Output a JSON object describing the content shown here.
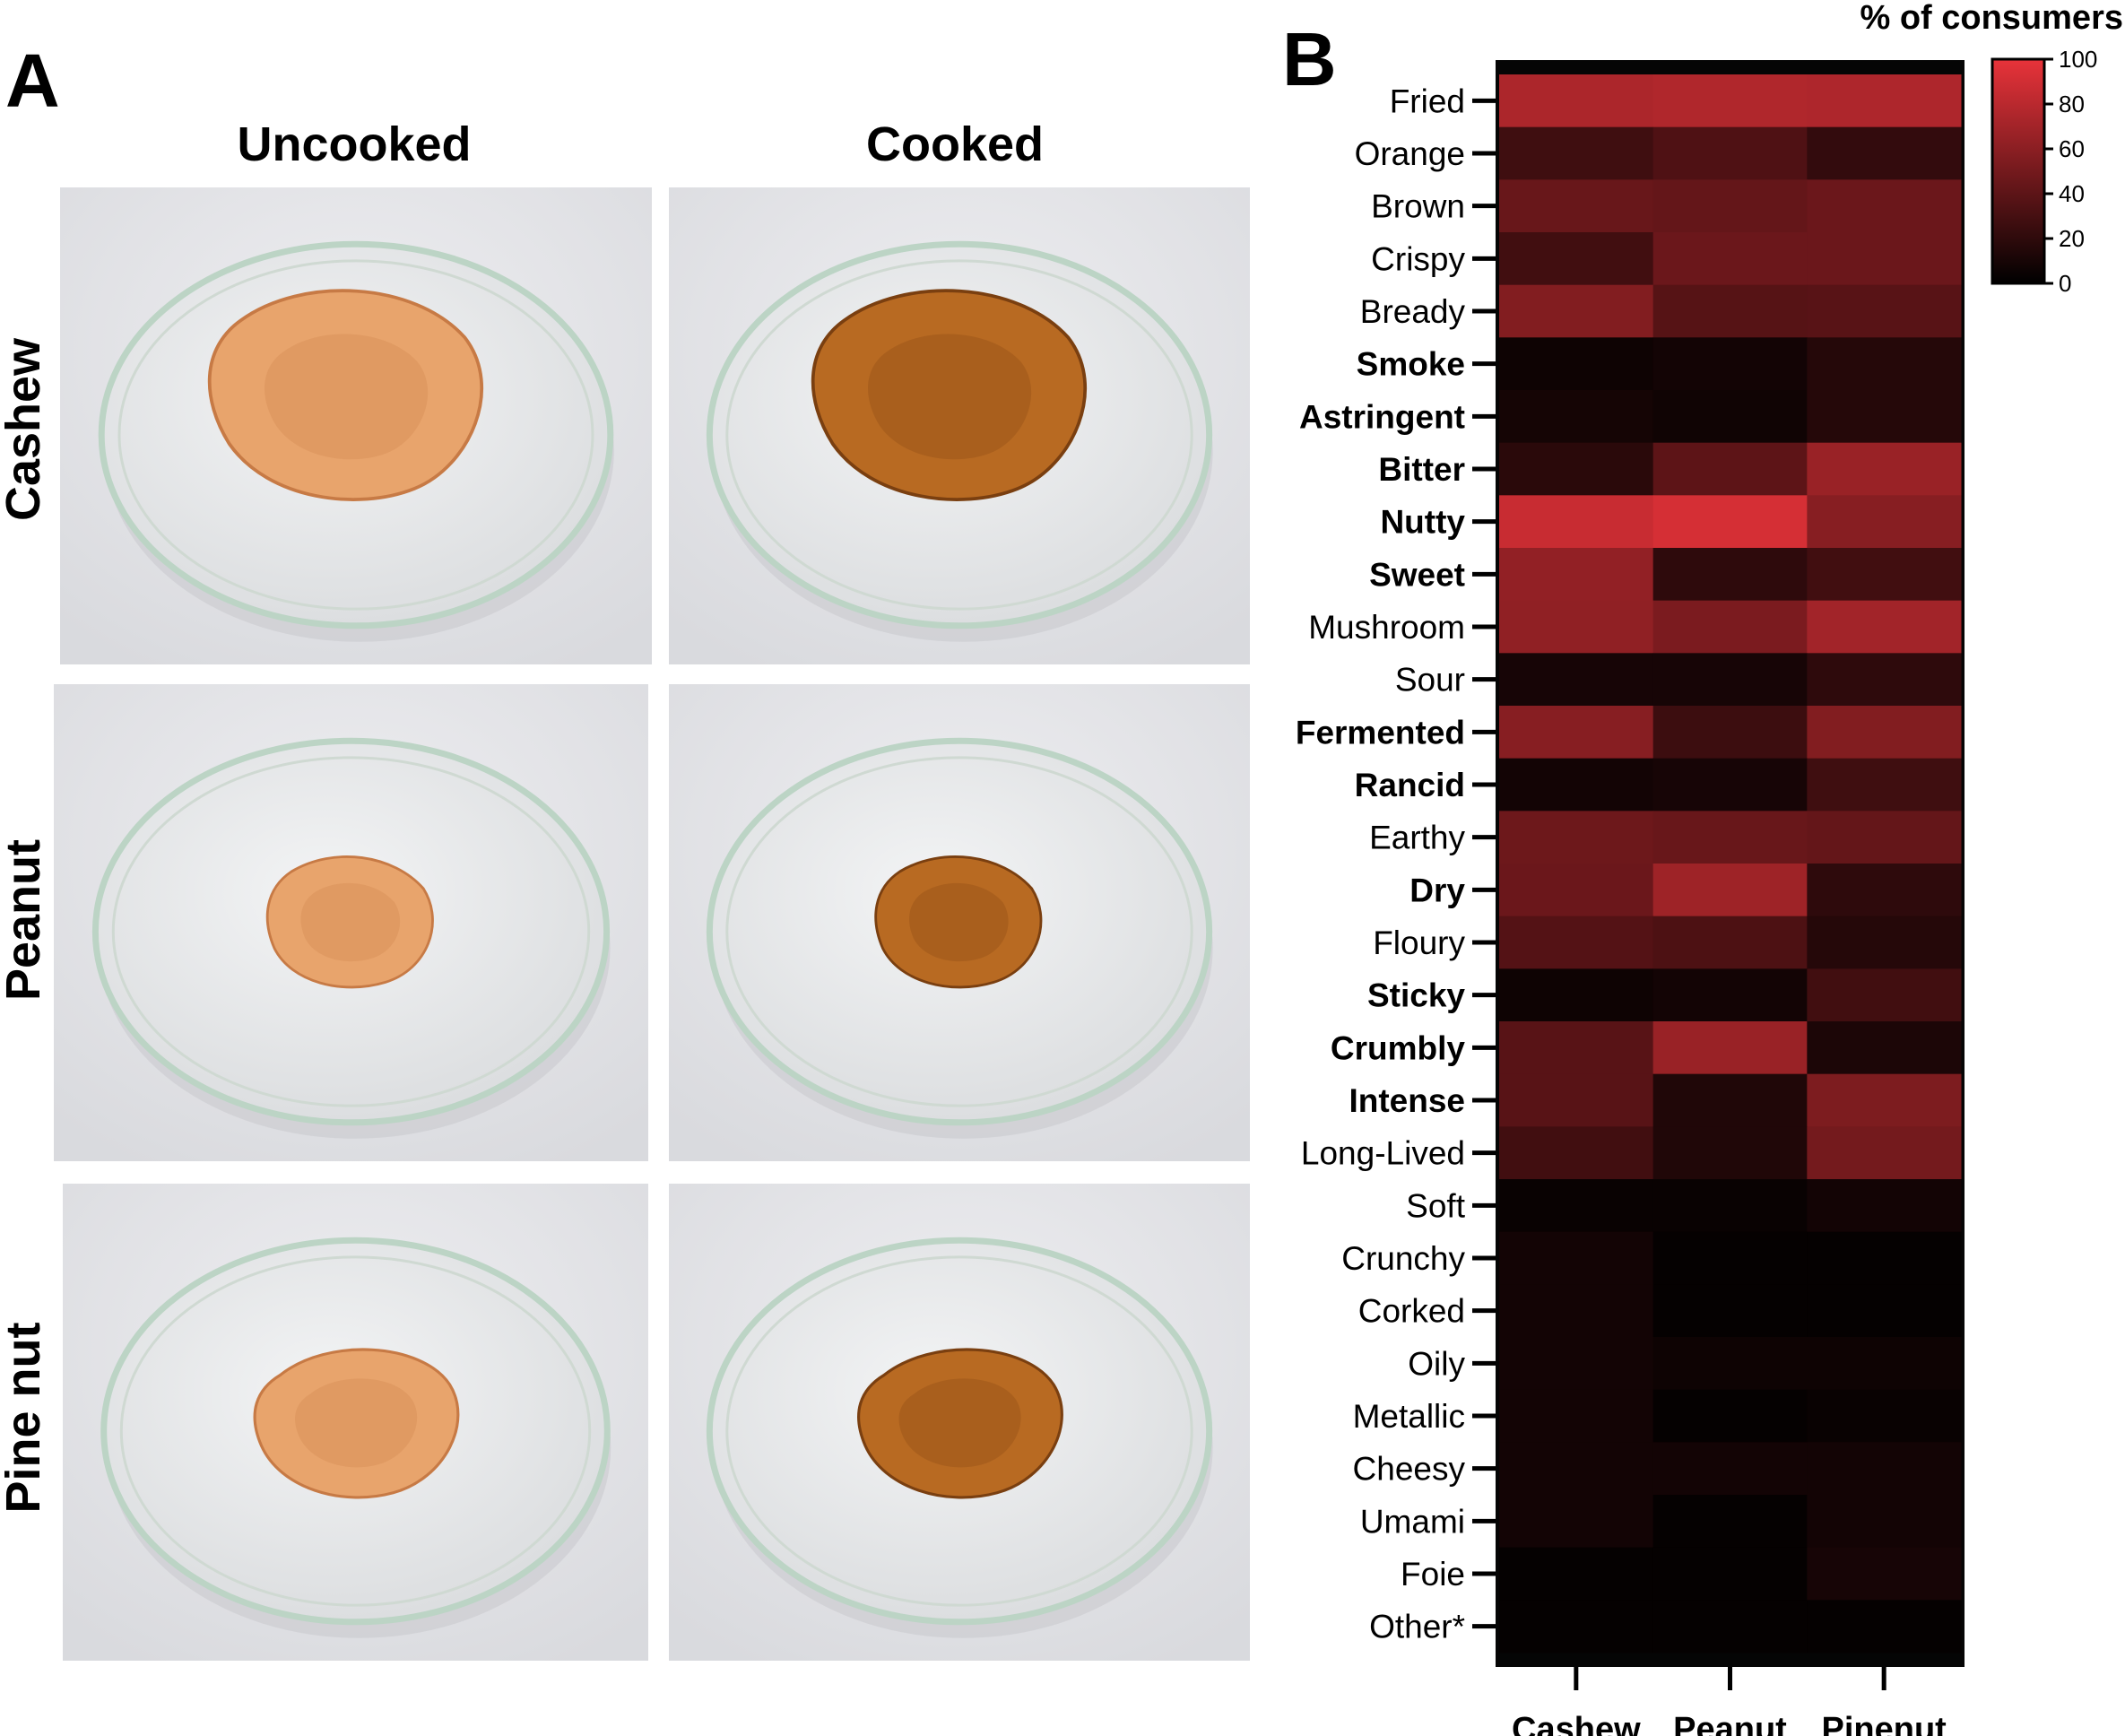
{
  "panel_a": {
    "letter": "A",
    "columns": [
      "Uncooked",
      "Cooked"
    ],
    "rows": [
      "Cashew",
      "Peanut",
      "Pine nut"
    ],
    "colors": {
      "background": "#d9dade",
      "dish_rim": "#bcd4c5",
      "uncooked_sample": "#e8a46c",
      "cooked_sample": "#b86a22"
    }
  },
  "panel_b": {
    "letter": "B"
  },
  "chart_data": {
    "type": "heatmap",
    "title": "",
    "colorbar_title": "% of consumers",
    "colorbar_ticks": [
      0,
      20,
      40,
      60,
      80,
      100
    ],
    "colorbar_range": [
      0,
      100
    ],
    "colormap": [
      "#000000",
      "#e8333a"
    ],
    "columns": [
      "Cashew",
      "Peanut",
      "Pinenut"
    ],
    "rows": [
      {
        "label": "Fried",
        "bold": false,
        "values": [
          74,
          76,
          75
        ]
      },
      {
        "label": "Orange",
        "bold": false,
        "values": [
          27,
          34,
          22
        ]
      },
      {
        "label": "Brown",
        "bold": false,
        "values": [
          45,
          43,
          46
        ]
      },
      {
        "label": "Crispy",
        "bold": false,
        "values": [
          28,
          46,
          46
        ]
      },
      {
        "label": "Bready",
        "bold": false,
        "values": [
          56,
          37,
          38
        ]
      },
      {
        "label": "Smoke",
        "bold": true,
        "values": [
          6,
          8,
          16
        ]
      },
      {
        "label": "Astringent",
        "bold": true,
        "values": [
          9,
          7,
          16
        ]
      },
      {
        "label": "Bitter",
        "bold": true,
        "values": [
          18,
          40,
          66
        ]
      },
      {
        "label": "Nutty",
        "bold": true,
        "values": [
          86,
          92,
          58
        ]
      },
      {
        "label": "Sweet",
        "bold": true,
        "values": [
          63,
          20,
          28
        ]
      },
      {
        "label": "Mushroom",
        "bold": false,
        "values": [
          62,
          53,
          70
        ]
      },
      {
        "label": "Sour",
        "bold": false,
        "values": [
          10,
          10,
          20
        ]
      },
      {
        "label": "Fermented",
        "bold": true,
        "values": [
          58,
          26,
          56
        ]
      },
      {
        "label": "Rancid",
        "bold": true,
        "values": [
          8,
          10,
          27
        ]
      },
      {
        "label": "Earthy",
        "bold": false,
        "values": [
          47,
          45,
          43
        ]
      },
      {
        "label": "Dry",
        "bold": true,
        "values": [
          46,
          68,
          20
        ]
      },
      {
        "label": "Floury",
        "bold": false,
        "values": [
          36,
          33,
          16
        ]
      },
      {
        "label": "Sticky",
        "bold": true,
        "values": [
          6,
          8,
          28
        ]
      },
      {
        "label": "Crumbly",
        "bold": true,
        "values": [
          38,
          66,
          12
        ]
      },
      {
        "label": "Intense",
        "bold": true,
        "values": [
          38,
          14,
          54
        ]
      },
      {
        "label": "Long-Lived",
        "bold": false,
        "values": [
          28,
          14,
          50
        ]
      },
      {
        "label": "Soft",
        "bold": false,
        "values": [
          4,
          4,
          8
        ]
      },
      {
        "label": "Crunchy",
        "bold": false,
        "values": [
          8,
          2,
          2
        ]
      },
      {
        "label": "Corked",
        "bold": false,
        "values": [
          8,
          2,
          2
        ]
      },
      {
        "label": "Oily",
        "bold": false,
        "values": [
          8,
          6,
          6
        ]
      },
      {
        "label": "Metallic",
        "bold": false,
        "values": [
          8,
          2,
          4
        ]
      },
      {
        "label": "Cheesy",
        "bold": false,
        "values": [
          8,
          8,
          8
        ]
      },
      {
        "label": "Umami",
        "bold": false,
        "values": [
          8,
          2,
          8
        ]
      },
      {
        "label": "Foie",
        "bold": false,
        "values": [
          2,
          2,
          10
        ]
      },
      {
        "label": "Other*",
        "bold": false,
        "values": [
          2,
          2,
          2
        ]
      }
    ]
  }
}
